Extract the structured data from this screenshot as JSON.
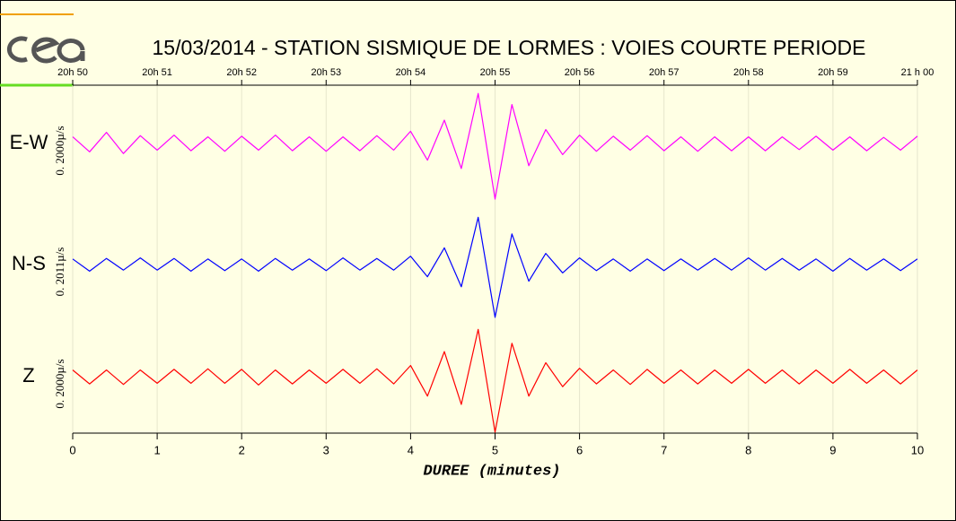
{
  "chart_data": {
    "type": "seismogram",
    "title": "15/03/2014  -  STATION SISMIQUE DE LORMES : VOIES COURTE PERIODE",
    "x_label": "DUREE (minutes)",
    "xlim": [
      0,
      10
    ],
    "xticks": [
      0,
      1,
      2,
      3,
      4,
      5,
      6,
      7,
      8,
      9,
      10
    ],
    "top_ticks": [
      {
        "value": 0,
        "label": "20h 50"
      },
      {
        "value": 1,
        "label": "20h 51"
      },
      {
        "value": 2,
        "label": "20h 52"
      },
      {
        "value": 3,
        "label": "20h 53"
      },
      {
        "value": 4,
        "label": "20h 54"
      },
      {
        "value": 5,
        "label": "20h 55"
      },
      {
        "value": 6,
        "label": "20h 56"
      },
      {
        "value": 7,
        "label": "20h 57"
      },
      {
        "value": 8,
        "label": "20h 58"
      },
      {
        "value": 9,
        "label": "20h 59"
      },
      {
        "value": 10,
        "label": "21 h 00"
      }
    ],
    "ylim": [
      -1,
      1
    ],
    "grid": true,
    "x": [
      0,
      0.2,
      0.4,
      0.6,
      0.8,
      1,
      1.2,
      1.4,
      1.6,
      1.8,
      2,
      2.2,
      2.4,
      2.6,
      2.8,
      3,
      3.2,
      3.4,
      3.6,
      3.8,
      4,
      4.2,
      4.4,
      4.6,
      4.8,
      5,
      5.2,
      5.4,
      5.6,
      5.8,
      6,
      6.2,
      6.4,
      6.6,
      6.8,
      7,
      7.2,
      7.4,
      7.6,
      7.8,
      8,
      8.2,
      8.4,
      8.6,
      8.8,
      9,
      9.2,
      9.4,
      9.6,
      9.8,
      10
    ],
    "series": [
      {
        "name": "E-W",
        "scale_label": "0. 2000µ/s",
        "color": "#ff00ff",
        "values": [
          0.12,
          -0.15,
          0.2,
          -0.18,
          0.14,
          -0.12,
          0.15,
          -0.13,
          0.12,
          -0.14,
          0.13,
          -0.12,
          0.15,
          -0.13,
          0.12,
          -0.14,
          0.12,
          -0.13,
          0.14,
          -0.12,
          0.22,
          -0.3,
          0.42,
          -0.45,
          0.9,
          -1.0,
          0.7,
          -0.4,
          0.25,
          -0.2,
          0.15,
          -0.14,
          0.13,
          -0.12,
          0.14,
          -0.13,
          0.12,
          -0.14,
          0.12,
          -0.13,
          0.12,
          -0.13,
          0.12,
          -0.11,
          0.13,
          -0.12,
          0.12,
          -0.13,
          0.11,
          -0.12,
          0.13
        ]
      },
      {
        "name": "N-S",
        "scale_label": "0. 2011µ/s",
        "color": "#0000ff",
        "values": [
          0.1,
          -0.12,
          0.11,
          -0.1,
          0.12,
          -0.1,
          0.11,
          -0.12,
          0.1,
          -0.11,
          0.1,
          -0.12,
          0.11,
          -0.1,
          0.1,
          -0.11,
          0.12,
          -0.1,
          0.11,
          -0.1,
          0.15,
          -0.22,
          0.3,
          -0.4,
          0.85,
          -0.95,
          0.55,
          -0.3,
          0.2,
          -0.15,
          0.12,
          -0.11,
          0.1,
          -0.12,
          0.1,
          -0.11,
          0.1,
          -0.1,
          0.11,
          -0.1,
          0.12,
          -0.1,
          0.11,
          -0.1,
          0.1,
          -0.12,
          0.11,
          -0.1,
          0.1,
          -0.11,
          0.1
        ]
      },
      {
        "name": "Z",
        "scale_label": "0. 2000µ/s",
        "color": "#ff0000",
        "values": [
          0.12,
          -0.13,
          0.12,
          -0.14,
          0.12,
          -0.12,
          0.13,
          -0.12,
          0.14,
          -0.12,
          0.13,
          -0.15,
          0.12,
          -0.13,
          0.12,
          -0.12,
          0.13,
          -0.12,
          0.14,
          -0.13,
          0.2,
          -0.35,
          0.45,
          -0.5,
          0.85,
          -1.0,
          0.6,
          -0.35,
          0.25,
          -0.18,
          0.15,
          -0.13,
          0.12,
          -0.14,
          0.13,
          -0.12,
          0.12,
          -0.13,
          0.12,
          -0.12,
          0.13,
          -0.12,
          0.12,
          -0.13,
          0.12,
          -0.12,
          0.13,
          -0.12,
          0.12,
          -0.13,
          0.12
        ]
      }
    ]
  }
}
